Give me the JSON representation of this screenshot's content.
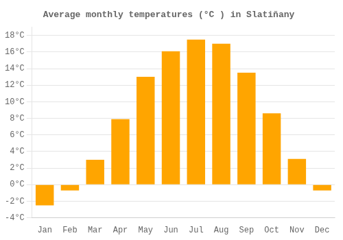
{
  "chart_data": {
    "type": "bar",
    "title": "Average monthly temperatures (°C ) in Slatiňany",
    "categories": [
      "Jan",
      "Feb",
      "Mar",
      "Apr",
      "May",
      "Jun",
      "Jul",
      "Aug",
      "Sep",
      "Oct",
      "Nov",
      "Dec"
    ],
    "values": [
      -2.5,
      -0.7,
      3.0,
      7.9,
      13.0,
      16.1,
      17.5,
      17.0,
      13.5,
      8.6,
      3.1,
      -0.7
    ],
    "color": "#FFA500",
    "ylim": [
      -4,
      19
    ],
    "yticks": [
      {
        "value": -4,
        "label": "-4°C"
      },
      {
        "value": -2,
        "label": "-2°C"
      },
      {
        "value": 0,
        "label": "0°C"
      },
      {
        "value": 2,
        "label": "2°C"
      },
      {
        "value": 4,
        "label": "4°C"
      },
      {
        "value": 6,
        "label": "6°C"
      },
      {
        "value": 8,
        "label": "8°C"
      },
      {
        "value": 10,
        "label": "10°C"
      },
      {
        "value": 12,
        "label": "12°C"
      },
      {
        "value": 14,
        "label": "14°C"
      },
      {
        "value": 16,
        "label": "16°C"
      },
      {
        "value": 18,
        "label": "18°C"
      }
    ],
    "grid": true
  }
}
